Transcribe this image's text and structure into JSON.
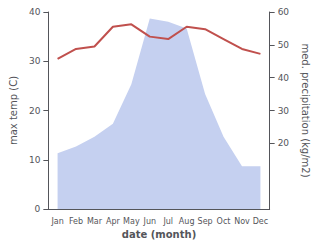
{
  "chart_data": {
    "type": "line",
    "categories": [
      "Jan",
      "Feb",
      "Mar",
      "Apr",
      "May",
      "Jun",
      "Jul",
      "Aug",
      "Sep",
      "Oct",
      "Nov",
      "Dec"
    ],
    "xlabel": "date (month)",
    "ylabel": "max temp (C)",
    "y2label": "med. precipitation (kg/m2)",
    "series": [
      {
        "type": "area",
        "color": "#c5d0f0",
        "axis": "y2",
        "values": [
          17,
          19,
          22,
          26,
          38,
          58,
          57,
          55,
          35,
          22,
          13,
          13
        ]
      },
      {
        "type": "line",
        "color": "#c0504d",
        "values": [
          30.5,
          32.5,
          33.0,
          37.0,
          37.5,
          35.0,
          34.5,
          37.0,
          36.5,
          34.5,
          32.5,
          31.5
        ]
      }
    ],
    "ylim": [
      0,
      40
    ],
    "yticks": [
      0,
      10,
      20,
      30,
      40
    ],
    "y2lim": [
      0,
      60
    ],
    "y2ticks": [
      20,
      30,
      40,
      50,
      60
    ],
    "grid": false
  }
}
